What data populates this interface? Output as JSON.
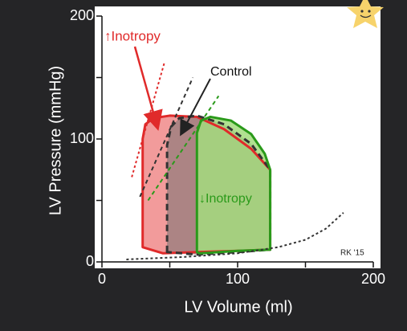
{
  "chart_data": {
    "type": "pv-loop",
    "xlabel": "LV Volume (ml)",
    "ylabel": "LV Pressure (mmHg)",
    "xlim": [
      0,
      200
    ],
    "ylim": [
      0,
      200
    ],
    "xticks": [
      0,
      100,
      200
    ],
    "yticks": [
      0,
      100,
      200
    ],
    "xminor_ticks": [
      50,
      150
    ],
    "yminor_ticks": [
      50,
      150
    ],
    "series": [
      {
        "name": "↑Inotropy",
        "color": "#e02a2a",
        "fill": "#f08a8a",
        "x": [
          30,
          30,
          32,
          38,
          50,
          70,
          90,
          110,
          124,
          124,
          100,
          70,
          45,
          30
        ],
        "values": [
          12,
          100,
          112,
          117,
          119,
          118,
          108,
          92,
          75,
          10,
          9,
          8,
          7,
          12
        ]
      },
      {
        "name": "Control",
        "color": "#333333",
        "fill": "#a08080",
        "x": [
          48,
          48,
          51,
          57,
          70,
          90,
          110,
          124,
          124,
          100,
          70,
          48
        ],
        "values": [
          8,
          95,
          110,
          117,
          119,
          112,
          96,
          75,
          10,
          8,
          6,
          8
        ]
      },
      {
        "name": "↓Inotropy",
        "color": "#2a9a1a",
        "fill": "#a3dc7e",
        "x": [
          70,
          70,
          73,
          80,
          95,
          110,
          120,
          124,
          124,
          100,
          72,
          70
        ],
        "values": [
          8,
          105,
          115,
          118,
          115,
          104,
          88,
          75,
          10,
          9,
          7,
          8
        ]
      }
    ],
    "lines": [
      {
        "color": "#e02a2a",
        "dash": "3,3",
        "x": [
          22,
          46
        ],
        "values": [
          69,
          162
        ]
      },
      {
        "color": "#333333",
        "dash": "5,4",
        "x": [
          28,
          67
        ],
        "values": [
          53,
          150
        ]
      },
      {
        "color": "#2a9a1a",
        "dash": "5,4",
        "x": [
          34,
          86
        ],
        "values": [
          50,
          135
        ]
      },
      {
        "color": "#333333",
        "dash": "3,3",
        "x": [
          18,
          60,
          100,
          130,
          150,
          165,
          178
        ],
        "values": [
          2,
          4,
          7,
          12,
          18,
          27,
          40
        ]
      }
    ],
    "signature": "RK '15"
  }
}
